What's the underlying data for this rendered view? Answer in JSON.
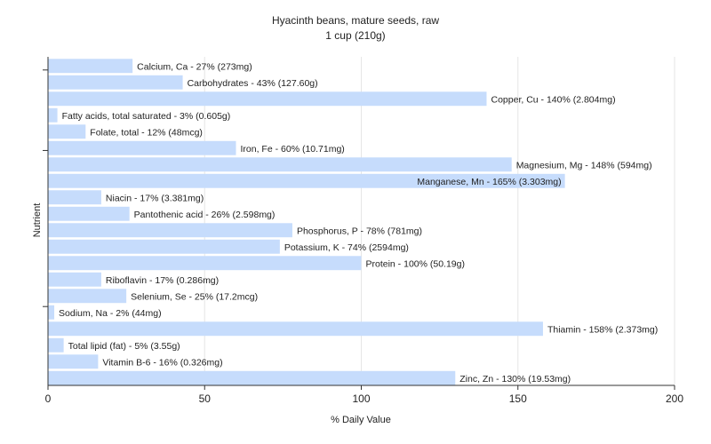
{
  "chart_data": {
    "type": "bar",
    "orientation": "horizontal",
    "title": "Hyacinth beans, mature seeds, raw",
    "subtitle": "1 cup (210g)",
    "xlabel": "% Daily Value",
    "ylabel": "Nutrient",
    "xlim": [
      0,
      200
    ],
    "xticks": [
      0,
      50,
      100,
      150,
      200
    ],
    "grid": true,
    "bar_color": "#c6dcfc",
    "bars": [
      {
        "label": "Calcium, Ca - 27% (273mg)",
        "value": 27
      },
      {
        "label": "Carbohydrates - 43% (127.60g)",
        "value": 43
      },
      {
        "label": "Copper, Cu - 140% (2.804mg)",
        "value": 140
      },
      {
        "label": "Fatty acids, total saturated - 3% (0.605g)",
        "value": 3
      },
      {
        "label": "Folate, total - 12% (48mcg)",
        "value": 12
      },
      {
        "label": "Iron, Fe - 60% (10.71mg)",
        "value": 60
      },
      {
        "label": "Magnesium, Mg - 148% (594mg)",
        "value": 148
      },
      {
        "label": "Manganese, Mn - 165% (3.303mg)",
        "value": 165
      },
      {
        "label": "Niacin - 17% (3.381mg)",
        "value": 17
      },
      {
        "label": "Pantothenic acid - 26% (2.598mg)",
        "value": 26
      },
      {
        "label": "Phosphorus, P - 78% (781mg)",
        "value": 78
      },
      {
        "label": "Potassium, K - 74% (2594mg)",
        "value": 74
      },
      {
        "label": "Protein - 100% (50.19g)",
        "value": 100
      },
      {
        "label": "Riboflavin - 17% (0.286mg)",
        "value": 17
      },
      {
        "label": "Selenium, Se - 25% (17.2mcg)",
        "value": 25
      },
      {
        "label": "Sodium, Na - 2% (44mg)",
        "value": 2
      },
      {
        "label": "Thiamin - 158% (2.373mg)",
        "value": 158
      },
      {
        "label": "Total lipid (fat) - 5% (3.55g)",
        "value": 5
      },
      {
        "label": "Vitamin B-6 - 16% (0.326mg)",
        "value": 16
      },
      {
        "label": "Zinc, Zn - 130% (19.53mg)",
        "value": 130
      }
    ]
  }
}
